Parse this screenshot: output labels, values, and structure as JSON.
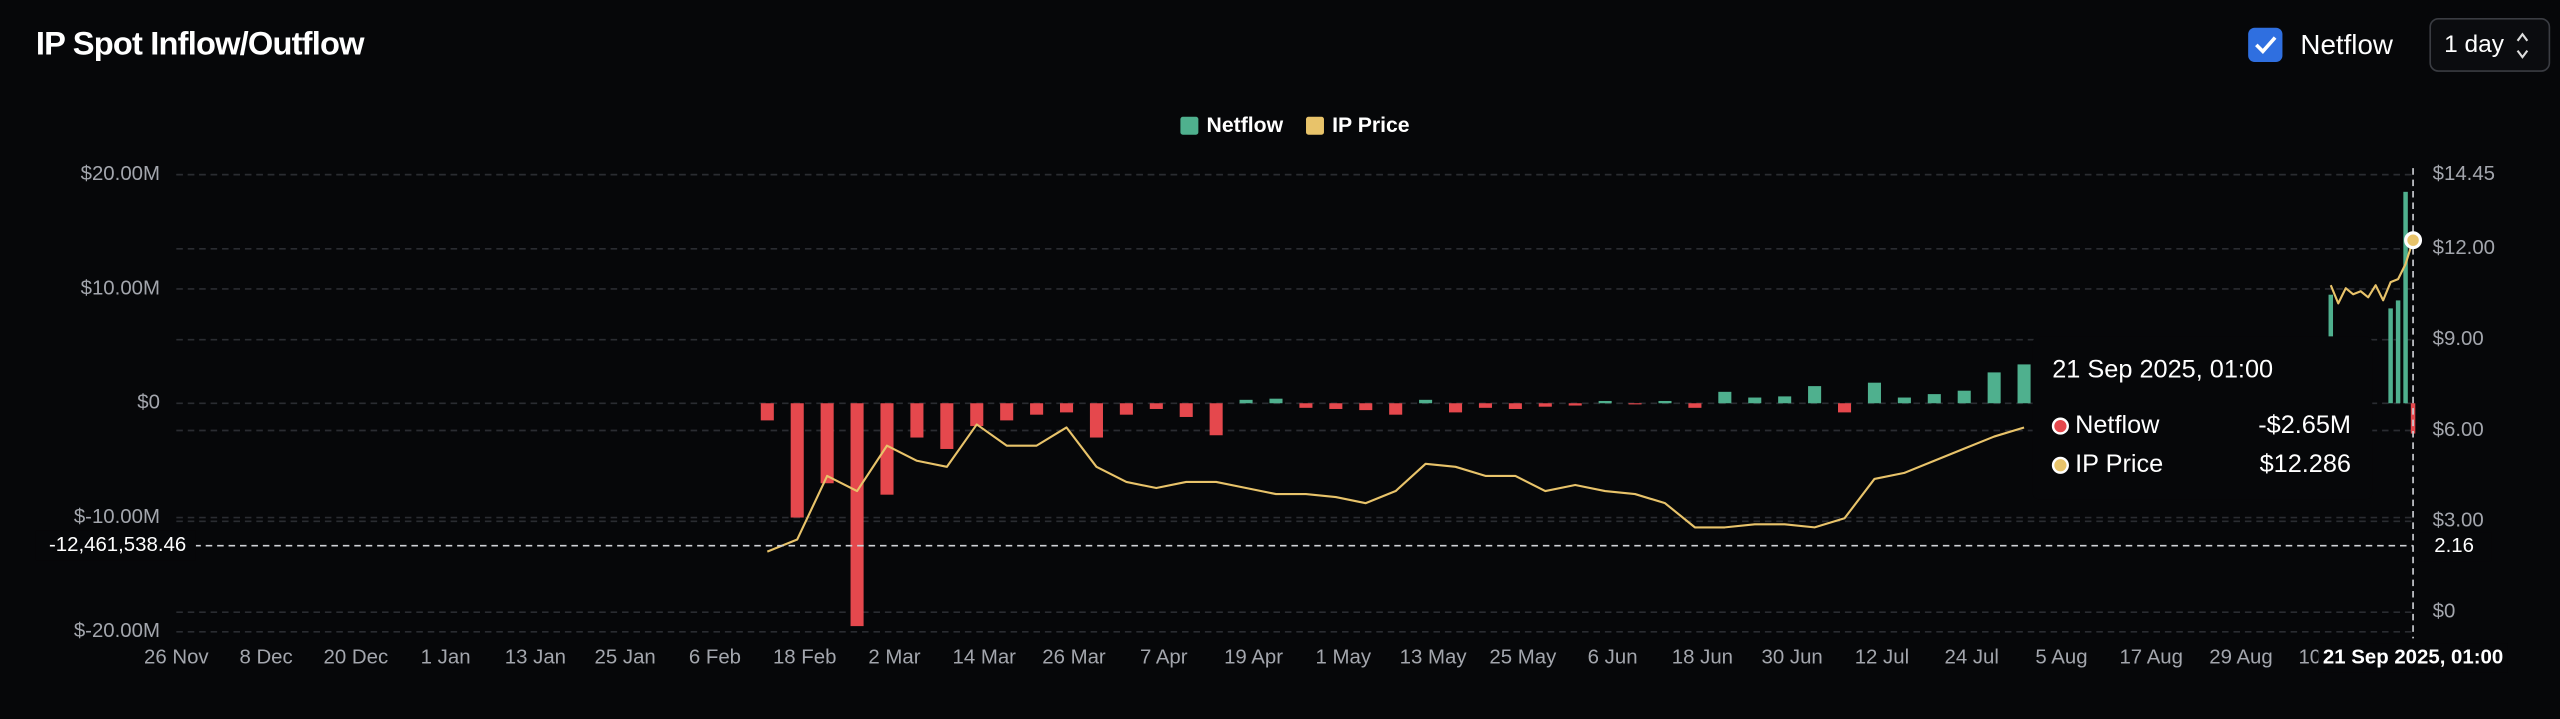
{
  "controls": {
    "toggle": "Netflow",
    "interval": "1 day"
  },
  "chart_data": {
    "type": "bar-line",
    "title": "IP Spot Inflow/Outflow",
    "x": [
      "2025-02-13",
      "2025-02-17",
      "2025-02-21",
      "2025-02-25",
      "2025-03-01",
      "2025-03-05",
      "2025-03-09",
      "2025-03-13",
      "2025-03-17",
      "2025-03-21",
      "2025-03-25",
      "2025-03-29",
      "2025-04-02",
      "2025-04-06",
      "2025-04-10",
      "2025-04-14",
      "2025-04-18",
      "2025-04-22",
      "2025-04-26",
      "2025-04-30",
      "2025-05-04",
      "2025-05-08",
      "2025-05-12",
      "2025-05-16",
      "2025-05-20",
      "2025-05-24",
      "2025-05-28",
      "2025-06-01",
      "2025-06-05",
      "2025-06-09",
      "2025-06-13",
      "2025-06-17",
      "2025-06-21",
      "2025-06-25",
      "2025-06-29",
      "2025-07-03",
      "2025-07-07",
      "2025-07-11",
      "2025-07-15",
      "2025-07-19",
      "2025-07-23",
      "2025-07-27",
      "2025-07-31",
      "2025-09-10",
      "2025-09-11",
      "2025-09-12",
      "2025-09-13",
      "2025-09-14",
      "2025-09-15",
      "2025-09-16",
      "2025-09-17",
      "2025-09-18",
      "2025-09-19",
      "2025-09-20",
      "2025-09-21"
    ],
    "series": [
      {
        "name": "Netflow",
        "type": "bar",
        "color": "#4fb08e",
        "negative_color": "#e5484d",
        "values": [
          -1500000,
          -10000000,
          -7000000,
          -19500000,
          -8000000,
          -3000000,
          -4000000,
          -2000000,
          -1500000,
          -1000000,
          -800000,
          -3000000,
          -1000000,
          -500000,
          -1200000,
          -2800000,
          300000,
          400000,
          -400000,
          -500000,
          -600000,
          -1000000,
          300000,
          -800000,
          -400000,
          -500000,
          -300000,
          -200000,
          200000,
          -100000,
          200000,
          -400000,
          1000000,
          500000,
          600000,
          1500000,
          -800000,
          1800000,
          500000,
          800000,
          1100000,
          2700000,
          3400000,
          9500000,
          null,
          null,
          null,
          null,
          null,
          null,
          null,
          8300000,
          9000000,
          18500000,
          -2650000
        ]
      },
      {
        "name": "IP Price",
        "type": "line",
        "axis": "y2",
        "color": "#e8c36a",
        "values": [
          2.0,
          2.4,
          4.5,
          4.0,
          5.5,
          5.0,
          4.8,
          6.2,
          5.5,
          5.5,
          6.1,
          4.8,
          4.3,
          4.1,
          4.3,
          4.3,
          4.1,
          3.9,
          3.9,
          3.8,
          3.6,
          4.0,
          4.9,
          4.8,
          4.5,
          4.5,
          4.0,
          4.2,
          4.0,
          3.9,
          3.6,
          2.8,
          2.8,
          2.9,
          2.9,
          2.8,
          3.1,
          4.4,
          4.6,
          5.0,
          5.4,
          5.8,
          6.1,
          10.8,
          10.2,
          10.7,
          10.5,
          10.6,
          10.4,
          10.8,
          10.3,
          10.9,
          11.0,
          11.5,
          12.286
        ]
      }
    ],
    "xlim": [
      "2024-11-26",
      "2025-09-21"
    ],
    "xticks": [
      {
        "value": "2024-11-26",
        "label": "26 Nov"
      },
      {
        "value": "2024-12-08",
        "label": "8 Dec"
      },
      {
        "value": "2024-12-20",
        "label": "20 Dec"
      },
      {
        "value": "2025-01-01",
        "label": "1 Jan"
      },
      {
        "value": "2025-01-13",
        "label": "13 Jan"
      },
      {
        "value": "2025-01-25",
        "label": "25 Jan"
      },
      {
        "value": "2025-02-06",
        "label": "6 Feb"
      },
      {
        "value": "2025-02-18",
        "label": "18 Feb"
      },
      {
        "value": "2025-03-02",
        "label": "2 Mar"
      },
      {
        "value": "2025-03-14",
        "label": "14 Mar"
      },
      {
        "value": "2025-03-26",
        "label": "26 Mar"
      },
      {
        "value": "2025-04-07",
        "label": "7 Apr"
      },
      {
        "value": "2025-04-19",
        "label": "19 Apr"
      },
      {
        "value": "2025-05-01",
        "label": "1 May"
      },
      {
        "value": "2025-05-13",
        "label": "13 May"
      },
      {
        "value": "2025-05-25",
        "label": "25 May"
      },
      {
        "value": "2025-06-06",
        "label": "6 Jun"
      },
      {
        "value": "2025-06-18",
        "label": "18 Jun"
      },
      {
        "value": "2025-06-30",
        "label": "30 Jun"
      },
      {
        "value": "2025-07-12",
        "label": "12 Jul"
      },
      {
        "value": "2025-07-24",
        "label": "24 Jul"
      },
      {
        "value": "2025-08-05",
        "label": "5 Aug"
      },
      {
        "value": "2025-08-17",
        "label": "17 Aug"
      },
      {
        "value": "2025-08-29",
        "label": "29 Aug"
      },
      {
        "value": "2025-09-10",
        "label": "10 Sep"
      }
    ],
    "ylim": [
      -20000000,
      20000000
    ],
    "yticks": [
      {
        "value": 20000000,
        "label": "$20.00M"
      },
      {
        "value": 10000000,
        "label": "$10.00M"
      },
      {
        "value": 0,
        "label": "$0"
      },
      {
        "value": -10000000,
        "label": "$-10.00M"
      },
      {
        "value": -20000000,
        "label": "$-20.00M"
      }
    ],
    "y2lim": [
      -0.65,
      14.45
    ],
    "y2ticks": [
      {
        "value": 14.45,
        "label": "$14.45"
      },
      {
        "value": 12,
        "label": "$12.00"
      },
      {
        "value": 9,
        "label": "$9.00"
      },
      {
        "value": 6,
        "label": "$6.00"
      },
      {
        "value": 3,
        "label": "$3.00"
      },
      {
        "value": 0,
        "label": "$0"
      }
    ],
    "grid": true,
    "legend": "top",
    "crosshair": {
      "y": {
        "value": -12461538.46,
        "label": "-12,461,538.46"
      },
      "y2": 2.16
    },
    "tooltip": {
      "title": "21 Sep 2025, 01:00",
      "labels": [
        "-$2.65M",
        "$12.286"
      ]
    }
  }
}
